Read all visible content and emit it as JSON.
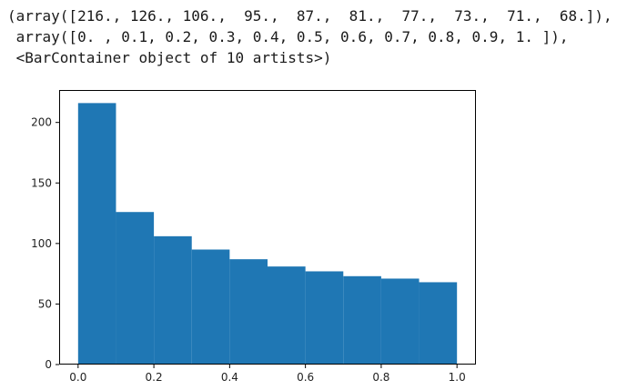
{
  "output_lines": [
    "(array([216., 126., 106.,  95.,  87.,  81.,  77.,  73.,  71.,  68.]),",
    " array([0. , 0.1, 0.2, 0.3, 0.4, 0.5, 0.6, 0.7, 0.8, 0.9, 1. ]),",
    " <BarContainer object of 10 artists>)"
  ],
  "colors": {
    "bar": "#1f77b4",
    "axis": "#000000",
    "text": "#222222"
  },
  "chart_data": {
    "type": "bar",
    "bin_edges": [
      0.0,
      0.1,
      0.2,
      0.3,
      0.4,
      0.5,
      0.6,
      0.7,
      0.8,
      0.9,
      1.0
    ],
    "values": [
      216,
      126,
      106,
      95,
      87,
      81,
      77,
      73,
      71,
      68
    ],
    "xlim": [
      -0.05,
      1.05
    ],
    "ylim": [
      0,
      226.8
    ],
    "xticks": [
      0.0,
      0.2,
      0.4,
      0.6,
      0.8,
      1.0
    ],
    "xtick_labels": [
      "0.0",
      "0.2",
      "0.4",
      "0.6",
      "0.8",
      "1.0"
    ],
    "yticks": [
      0,
      50,
      100,
      150,
      200
    ],
    "ytick_labels": [
      "0",
      "50",
      "100",
      "150",
      "200"
    ],
    "title": "",
    "xlabel": "",
    "ylabel": "",
    "grid": false
  }
}
